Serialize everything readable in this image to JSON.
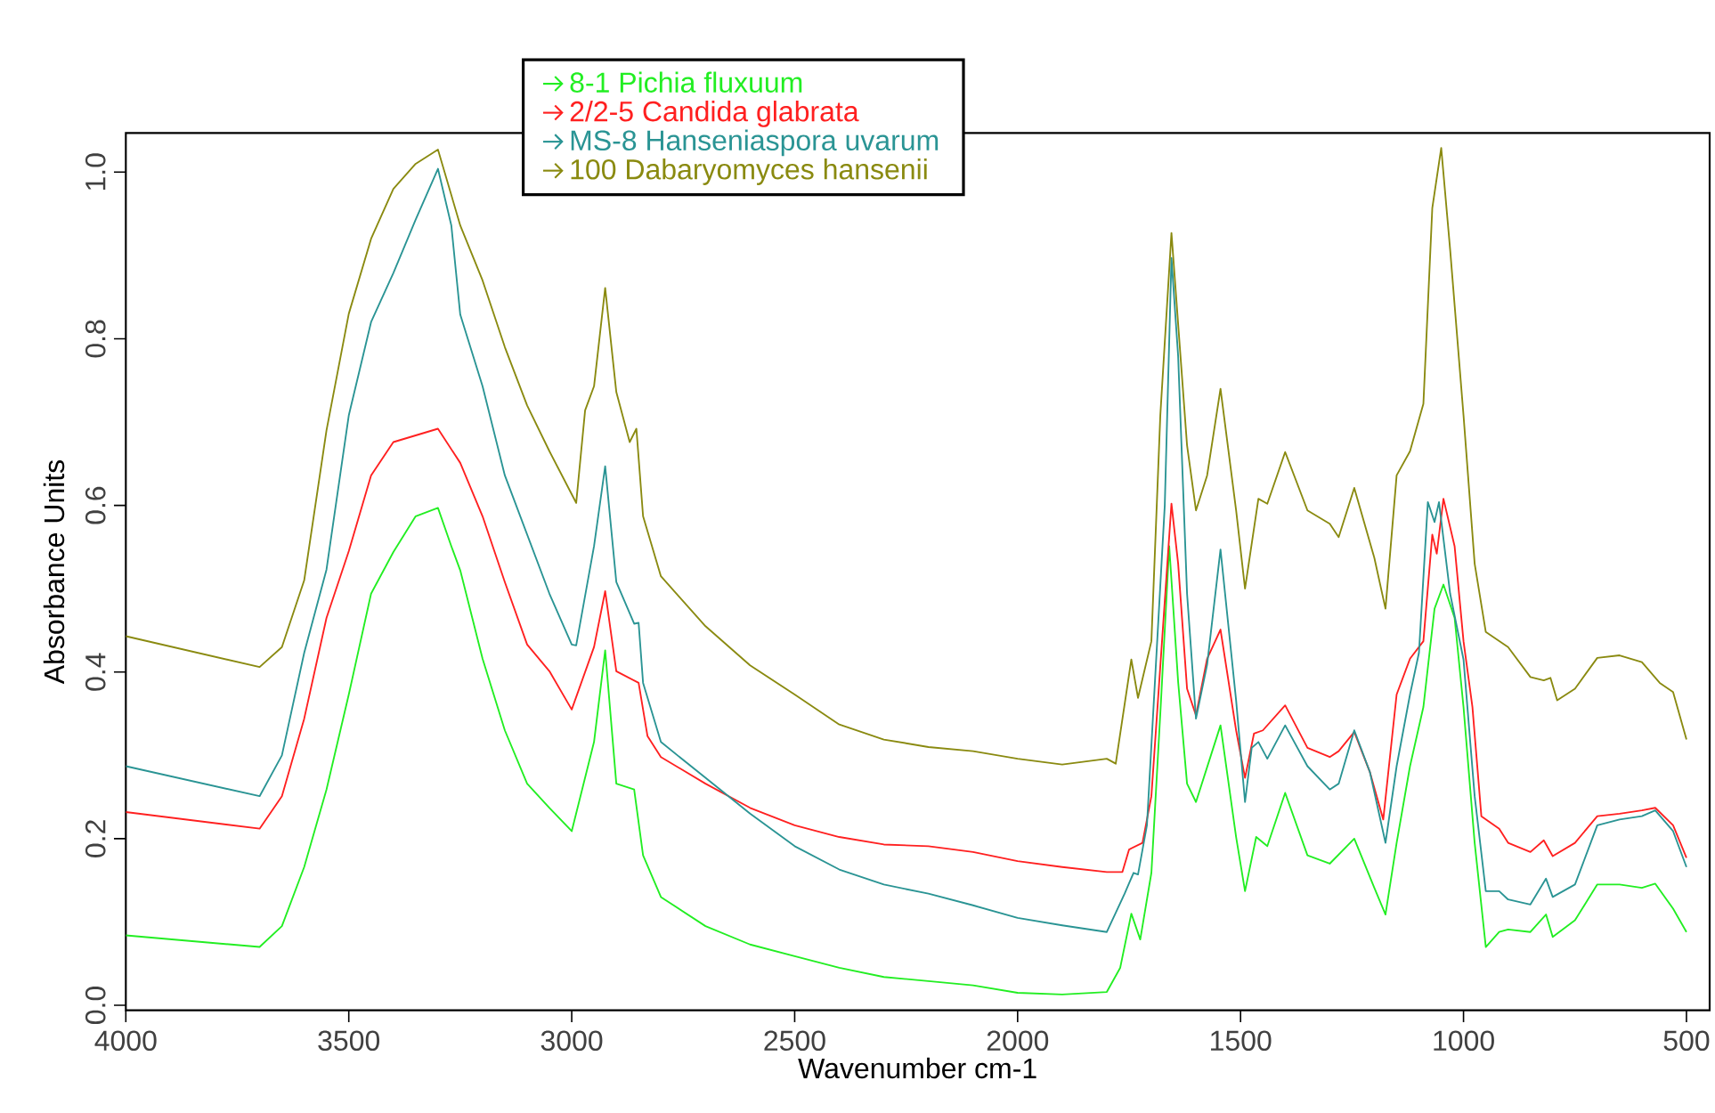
{
  "chart_data": {
    "type": "line",
    "xlabel": "Wavenumber cm-1",
    "ylabel": "Absorbance Units",
    "xlim": [
      4000,
      448
    ],
    "ylim": [
      -0.006,
      1.047
    ],
    "xticks": [
      4000,
      3500,
      3000,
      2500,
      2000,
      1500,
      1000,
      500
    ],
    "yticks": [
      {
        "value": 0,
        "label": "0.0"
      },
      0.2,
      0.4,
      0.6,
      0.8,
      {
        "value": 1,
        "label": "1.0"
      }
    ],
    "legend": "top",
    "grid": false,
    "marker": "none",
    "series": [
      {
        "name": "8-1 Pichia fluxuum",
        "color": "#22ee22",
        "x": [
          4000,
          3700,
          3650,
          3600,
          3550,
          3500,
          3450,
          3400,
          3350,
          3300,
          3270,
          3250,
          3200,
          3150,
          3100,
          3050,
          3000,
          2950,
          2925,
          2900,
          2860,
          2840,
          2800,
          2700,
          2600,
          2500,
          2400,
          2300,
          2200,
          2100,
          2000,
          1900,
          1800,
          1770,
          1745,
          1725,
          1700,
          1680,
          1660,
          1640,
          1620,
          1600,
          1545,
          1510,
          1490,
          1465,
          1440,
          1400,
          1350,
          1300,
          1245,
          1200,
          1175,
          1150,
          1120,
          1090,
          1065,
          1045,
          1020,
          1000,
          975,
          950,
          920,
          900,
          850,
          815,
          800,
          750,
          700,
          650,
          600,
          570,
          530,
          500
        ],
        "values": [
          0.084,
          0.07,
          0.095,
          0.166,
          0.259,
          0.373,
          0.494,
          0.544,
          0.587,
          0.597,
          0.551,
          0.522,
          0.416,
          0.33,
          0.266,
          0.237,
          0.209,
          0.316,
          0.426,
          0.266,
          0.259,
          0.18,
          0.13,
          0.095,
          0.073,
          0.059,
          0.045,
          0.034,
          0.029,
          0.024,
          0.015,
          0.013,
          0.016,
          0.045,
          0.11,
          0.079,
          0.159,
          0.35,
          0.551,
          0.388,
          0.266,
          0.244,
          0.336,
          0.202,
          0.137,
          0.202,
          0.191,
          0.255,
          0.18,
          0.17,
          0.2,
          0.141,
          0.109,
          0.195,
          0.287,
          0.358,
          0.476,
          0.505,
          0.465,
          0.358,
          0.195,
          0.07,
          0.088,
          0.091,
          0.088,
          0.109,
          0.082,
          0.102,
          0.145,
          0.145,
          0.141,
          0.146,
          0.116,
          0.088
        ]
      },
      {
        "name": "2/2-5 Candida glabrata",
        "color": "#ff2020",
        "x": [
          4000,
          3700,
          3650,
          3600,
          3550,
          3500,
          3450,
          3400,
          3300,
          3250,
          3200,
          3150,
          3100,
          3050,
          3000,
          2950,
          2925,
          2900,
          2850,
          2830,
          2800,
          2700,
          2600,
          2500,
          2400,
          2300,
          2200,
          2100,
          2000,
          1900,
          1800,
          1765,
          1750,
          1720,
          1700,
          1655,
          1640,
          1620,
          1600,
          1575,
          1545,
          1510,
          1490,
          1470,
          1450,
          1400,
          1350,
          1300,
          1280,
          1245,
          1210,
          1180,
          1150,
          1120,
          1090,
          1070,
          1060,
          1045,
          1020,
          1000,
          980,
          960,
          920,
          900,
          850,
          820,
          800,
          750,
          700,
          650,
          600,
          570,
          530,
          500
        ],
        "values": [
          0.232,
          0.212,
          0.251,
          0.344,
          0.465,
          0.545,
          0.636,
          0.676,
          0.692,
          0.651,
          0.587,
          0.508,
          0.433,
          0.401,
          0.355,
          0.43,
          0.497,
          0.401,
          0.387,
          0.323,
          0.298,
          0.266,
          0.237,
          0.216,
          0.202,
          0.193,
          0.191,
          0.184,
          0.173,
          0.166,
          0.16,
          0.16,
          0.187,
          0.195,
          0.251,
          0.602,
          0.53,
          0.38,
          0.348,
          0.416,
          0.451,
          0.33,
          0.273,
          0.326,
          0.33,
          0.36,
          0.309,
          0.298,
          0.305,
          0.328,
          0.28,
          0.223,
          0.373,
          0.416,
          0.437,
          0.565,
          0.542,
          0.608,
          0.551,
          0.437,
          0.358,
          0.227,
          0.212,
          0.195,
          0.184,
          0.198,
          0.179,
          0.195,
          0.227,
          0.23,
          0.234,
          0.237,
          0.216,
          0.177
        ]
      },
      {
        "name": "MS-8 Hanseniaspora uvarum",
        "color": "#2a9494",
        "x": [
          4000,
          3700,
          3650,
          3600,
          3550,
          3500,
          3450,
          3400,
          3350,
          3300,
          3270,
          3250,
          3200,
          3150,
          3100,
          3050,
          3000,
          2990,
          2950,
          2925,
          2900,
          2860,
          2850,
          2840,
          2800,
          2700,
          2600,
          2500,
          2400,
          2300,
          2200,
          2100,
          2000,
          1900,
          1800,
          1760,
          1740,
          1730,
          1710,
          1670,
          1655,
          1640,
          1620,
          1600,
          1575,
          1545,
          1510,
          1490,
          1475,
          1460,
          1440,
          1400,
          1350,
          1300,
          1280,
          1245,
          1210,
          1175,
          1150,
          1120,
          1100,
          1080,
          1065,
          1055,
          1030,
          1000,
          975,
          950,
          920,
          900,
          850,
          815,
          800,
          750,
          700,
          650,
          600,
          570,
          530,
          500
        ],
        "values": [
          0.287,
          0.251,
          0.3,
          0.423,
          0.523,
          0.708,
          0.82,
          0.879,
          0.943,
          1.004,
          0.936,
          0.829,
          0.743,
          0.636,
          0.565,
          0.494,
          0.433,
          0.432,
          0.551,
          0.647,
          0.508,
          0.458,
          0.459,
          0.387,
          0.316,
          0.273,
          0.23,
          0.191,
          0.163,
          0.145,
          0.134,
          0.12,
          0.105,
          0.096,
          0.088,
          0.134,
          0.159,
          0.157,
          0.216,
          0.6,
          0.897,
          0.779,
          0.494,
          0.344,
          0.409,
          0.547,
          0.366,
          0.244,
          0.309,
          0.316,
          0.296,
          0.336,
          0.287,
          0.259,
          0.266,
          0.33,
          0.28,
          0.195,
          0.287,
          0.373,
          0.423,
          0.604,
          0.58,
          0.604,
          0.494,
          0.415,
          0.251,
          0.137,
          0.137,
          0.127,
          0.121,
          0.152,
          0.13,
          0.145,
          0.216,
          0.223,
          0.227,
          0.234,
          0.209,
          0.166
        ]
      },
      {
        "name": "100 Dabaryomyces hansenii",
        "color": "#8a8a10",
        "x": [
          4000,
          3700,
          3650,
          3600,
          3550,
          3500,
          3450,
          3400,
          3350,
          3300,
          3250,
          3200,
          3150,
          3100,
          3050,
          2990,
          2970,
          2950,
          2925,
          2900,
          2870,
          2855,
          2840,
          2800,
          2700,
          2600,
          2500,
          2400,
          2300,
          2200,
          2100,
          2000,
          1900,
          1800,
          1780,
          1745,
          1730,
          1700,
          1680,
          1655,
          1620,
          1600,
          1575,
          1545,
          1510,
          1490,
          1460,
          1440,
          1400,
          1350,
          1300,
          1280,
          1245,
          1200,
          1175,
          1150,
          1120,
          1090,
          1070,
          1050,
          1030,
          1000,
          975,
          950,
          900,
          850,
          820,
          805,
          790,
          750,
          700,
          650,
          600,
          560,
          530,
          500
        ],
        "values": [
          0.443,
          0.406,
          0.43,
          0.51,
          0.69,
          0.83,
          0.92,
          0.98,
          1.01,
          1.027,
          0.936,
          0.87,
          0.79,
          0.72,
          0.665,
          0.603,
          0.714,
          0.743,
          0.861,
          0.736,
          0.676,
          0.692,
          0.587,
          0.515,
          0.455,
          0.408,
          0.373,
          0.337,
          0.319,
          0.31,
          0.305,
          0.296,
          0.289,
          0.296,
          0.29,
          0.415,
          0.369,
          0.437,
          0.708,
          0.927,
          0.672,
          0.594,
          0.636,
          0.74,
          0.594,
          0.5,
          0.608,
          0.602,
          0.664,
          0.594,
          0.578,
          0.562,
          0.621,
          0.537,
          0.476,
          0.636,
          0.665,
          0.722,
          0.957,
          1.029,
          0.907,
          0.708,
          0.53,
          0.448,
          0.43,
          0.394,
          0.39,
          0.393,
          0.366,
          0.38,
          0.417,
          0.42,
          0.412,
          0.387,
          0.376,
          0.319
        ]
      }
    ]
  }
}
